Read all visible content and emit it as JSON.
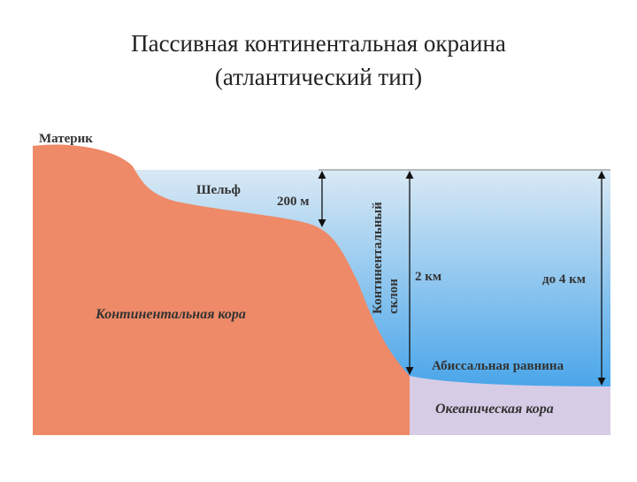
{
  "header": {
    "title_line1": "Пассивная континентальная окраина",
    "title_line2": "(атлантический тип)"
  },
  "labels": {
    "mainland": "Материк",
    "shelf": "Шельф",
    "shelf_depth": "200 м",
    "slope_line1": "Континентальный",
    "slope_line2": "склон",
    "slope_depth": "2 км",
    "ocean_depth": "до 4 км",
    "continental_crust": "Континентальная кора",
    "abyssal_plain": "Абиссальная равнина",
    "oceanic_crust": "Океаническая кора"
  }
}
